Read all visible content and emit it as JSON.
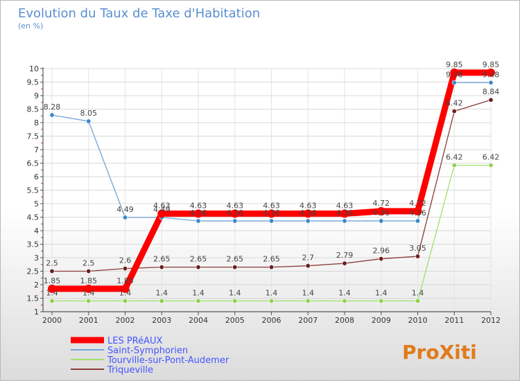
{
  "chart_data": {
    "type": "line",
    "title": "Evolution du Taux de Taxe d'Habitation",
    "subtitle": "(en %)",
    "categories": [
      "2000",
      "2001",
      "2002",
      "2003",
      "2004",
      "2005",
      "2006",
      "2007",
      "2008",
      "2009",
      "2010",
      "2011",
      "2012"
    ],
    "ylim": [
      1,
      10
    ],
    "yticks": [
      "1",
      "1.5",
      "2",
      "2.5",
      "3",
      "3.5",
      "4",
      "4.5",
      "5",
      "5.5",
      "6",
      "6.5",
      "7",
      "7.5",
      "8",
      "8.5",
      "9",
      "9.5",
      "10"
    ],
    "series": [
      {
        "name": "LES PRéAUX",
        "color": "#ff0000",
        "values": [
          1.85,
          1.85,
          1.85,
          4.63,
          4.63,
          4.63,
          4.63,
          4.63,
          4.63,
          4.72,
          4.72,
          9.85,
          9.85
        ],
        "labels": [
          "1.85",
          "1.85",
          "1.85",
          "4.63",
          "4.63",
          "4.63",
          "4.63",
          "4.63",
          "4.63",
          "4.72",
          "4.72",
          "9.85",
          "9.85"
        ]
      },
      {
        "name": "Saint-Symphorien",
        "color": "#6fa4d6",
        "marker": "#3e86cc",
        "values": [
          8.28,
          8.05,
          4.49,
          4.49,
          4.36,
          4.36,
          4.36,
          4.36,
          4.36,
          4.36,
          4.36,
          9.48,
          9.48
        ],
        "labels": [
          "8.28",
          "8.05",
          "4.49",
          "4.49",
          "4.36",
          "4.36",
          "4.36",
          "4.36",
          "4.36",
          "4.36",
          "4.36",
          "9.48",
          "9.48"
        ]
      },
      {
        "name": "Tourville-sur-Pont-Audemer",
        "color": "#a2e06a",
        "marker": "#8fd04c",
        "values": [
          1.4,
          1.4,
          1.4,
          1.4,
          1.4,
          1.4,
          1.4,
          1.4,
          1.4,
          1.4,
          1.4,
          6.42,
          6.42
        ],
        "labels": [
          "1.4",
          "1.4",
          "1.4",
          "1.4",
          "1.4",
          "1.4",
          "1.4",
          "1.4",
          "1.4",
          "1.4",
          "1.4",
          "6.42",
          "6.42"
        ]
      },
      {
        "name": "Triqueville",
        "color": "#8a3a3a",
        "marker": "#6b1f1f",
        "values": [
          2.5,
          2.5,
          2.6,
          2.65,
          2.65,
          2.65,
          2.65,
          2.7,
          2.79,
          2.96,
          3.05,
          8.42,
          8.84
        ],
        "labels": [
          "2.5",
          "2.5",
          "2.6",
          "2.65",
          "2.65",
          "2.65",
          "2.65",
          "2.7",
          "2.79",
          "2.96",
          "3.05",
          "8.42",
          "8.84"
        ]
      }
    ],
    "legend_position": "bottom-left"
  },
  "logo": {
    "text": "ProXiti"
  }
}
